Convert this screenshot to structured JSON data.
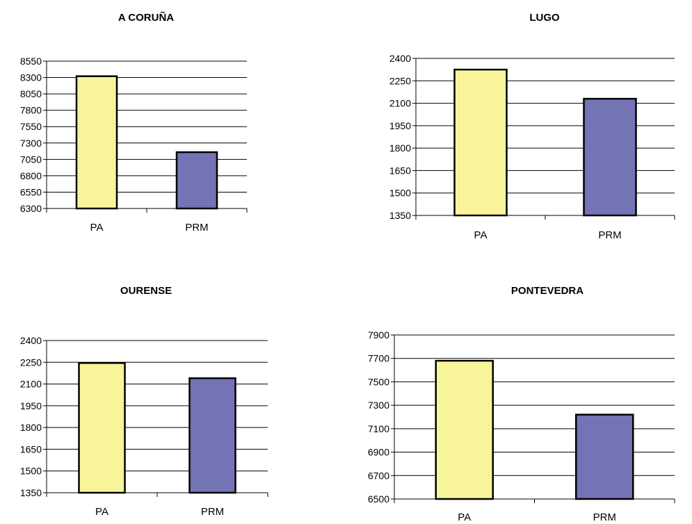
{
  "colors": {
    "PA": "#f7f49a",
    "PRM": "#7373b6",
    "grid": "#000000"
  },
  "chart_data": [
    {
      "type": "bar",
      "title": "A CORUÑA",
      "categories": [
        "PA",
        "PRM"
      ],
      "values": [
        8320,
        7160
      ],
      "ylim": [
        6300,
        8550
      ],
      "yticks": [
        "8550",
        "8300",
        "8050",
        "7800",
        "7550",
        "7300",
        "7050",
        "6800",
        "6550",
        "6300"
      ],
      "grid": true
    },
    {
      "type": "bar",
      "title": "LUGO",
      "categories": [
        "PA",
        "PRM"
      ],
      "values": [
        2325,
        2130
      ],
      "ylim": [
        1350,
        2400
      ],
      "yticks": [
        "2400",
        "2250",
        "2100",
        "1950",
        "1800",
        "1650",
        "1500",
        "1350"
      ],
      "grid": true
    },
    {
      "type": "bar",
      "title": "OURENSE",
      "categories": [
        "PA",
        "PRM"
      ],
      "values": [
        2245,
        2140
      ],
      "ylim": [
        1350,
        2400
      ],
      "yticks": [
        "2400",
        "2250",
        "2100",
        "1950",
        "1800",
        "1650",
        "1500",
        "1350"
      ],
      "grid": true
    },
    {
      "type": "bar",
      "title": "PONTEVEDRA",
      "categories": [
        "PA",
        "PRM"
      ],
      "values": [
        7680,
        7220
      ],
      "ylim": [
        6500,
        7900
      ],
      "yticks": [
        "7900",
        "7700",
        "7500",
        "7300",
        "7100",
        "6900",
        "6700",
        "6500"
      ],
      "grid": true
    }
  ]
}
